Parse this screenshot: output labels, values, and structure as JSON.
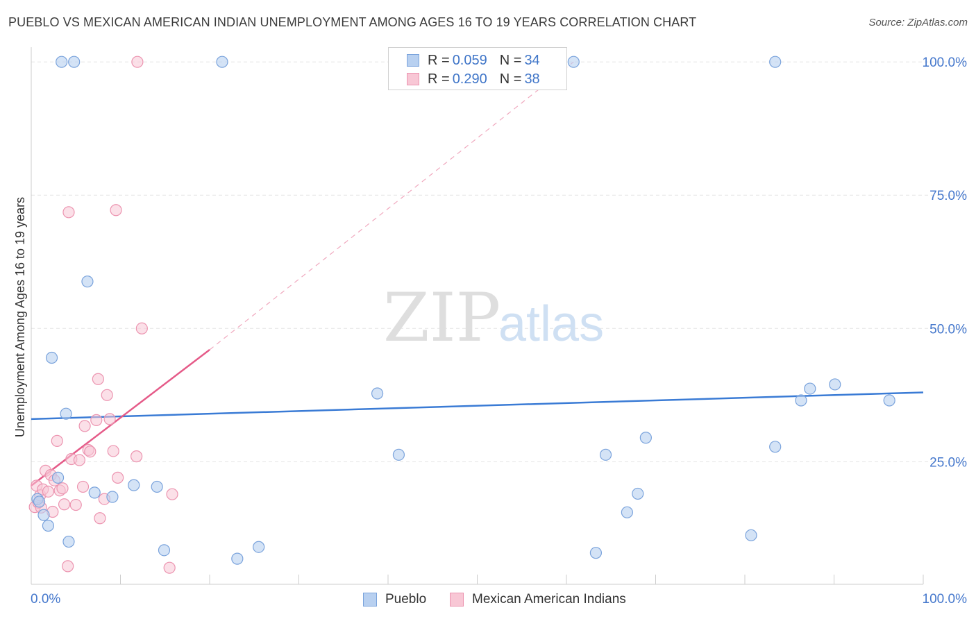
{
  "header": {
    "title": "PUEBLO VS MEXICAN AMERICAN INDIAN UNEMPLOYMENT AMONG AGES 16 TO 19 YEARS CORRELATION CHART",
    "source": "Source: ZipAtlas.com"
  },
  "watermark": {
    "zip": "ZIP",
    "atlas": "atlas"
  },
  "legend": {
    "rows": [
      {
        "r_label": "R =",
        "r_value": "0.059",
        "n_label": "N =",
        "n_value": "34"
      },
      {
        "r_label": "R =",
        "r_value": "0.290",
        "n_label": "N =",
        "n_value": "38"
      }
    ]
  },
  "bottom_legend": {
    "pueblo": "Pueblo",
    "mexican": "Mexican American Indians"
  },
  "chart_data": {
    "type": "scatter",
    "title": "PUEBLO VS MEXICAN AMERICAN INDIAN UNEMPLOYMENT AMONG AGES 16 TO 19 YEARS CORRELATION CHART",
    "xlabel": "",
    "ylabel": "Unemployment Among Ages 16 to 19 years",
    "xlim": [
      0,
      100
    ],
    "ylim": [
      2,
      102.5
    ],
    "x_ticks": [
      "0.0%",
      "100.0%"
    ],
    "y_ticks": [
      {
        "value": 25,
        "label": "25.0%"
      },
      {
        "value": 50,
        "label": "50.0%"
      },
      {
        "value": 75,
        "label": "75.0%"
      },
      {
        "value": 100,
        "label": "100.0%"
      }
    ],
    "colors": {
      "pueblo_fill": "#b8d0f0",
      "pueblo_stroke": "#7aa3dc",
      "pueblo_line": "#3a7bd5",
      "mexican_fill": "#f8c7d5",
      "mexican_stroke": "#ec94b0",
      "mexican_line": "#e55a88"
    },
    "series": [
      {
        "name": "Pueblo",
        "R": 0.059,
        "N": 34,
        "trend": {
          "x0": 0,
          "y0": 33.0,
          "x1": 100,
          "y1": 38.0
        },
        "points": [
          [
            0.7,
            18
          ],
          [
            0.9,
            17.5
          ],
          [
            1.4,
            15
          ],
          [
            1.9,
            13
          ],
          [
            2.3,
            44.5
          ],
          [
            3.0,
            22
          ],
          [
            3.4,
            100
          ],
          [
            3.9,
            34
          ],
          [
            4.2,
            10
          ],
          [
            4.8,
            100
          ],
          [
            6.3,
            58.8
          ],
          [
            7.1,
            19.2
          ],
          [
            9.1,
            18.4
          ],
          [
            11.5,
            20.6
          ],
          [
            14.1,
            20.3
          ],
          [
            14.9,
            8.4
          ],
          [
            21.4,
            100
          ],
          [
            23.1,
            6.8
          ],
          [
            25.5,
            9
          ],
          [
            38.8,
            37.8
          ],
          [
            41.2,
            26.3
          ],
          [
            60.8,
            100
          ],
          [
            63.3,
            7.9
          ],
          [
            64.4,
            26.3
          ],
          [
            66.8,
            15.5
          ],
          [
            68.0,
            19.0
          ],
          [
            68.9,
            29.5
          ],
          [
            80.7,
            11.2
          ],
          [
            83.4,
            100
          ],
          [
            83.4,
            27.8
          ],
          [
            86.3,
            36.5
          ],
          [
            87.3,
            38.7
          ],
          [
            90.1,
            39.5
          ],
          [
            96.2,
            36.5
          ]
        ]
      },
      {
        "name": "Mexican American Indians",
        "R": 0.29,
        "N": 38,
        "trend": {
          "x0": 0,
          "y0": 20.5,
          "x1": 20,
          "y1": 46.0
        },
        "trend_extension": {
          "x0": 20,
          "y0": 46.0,
          "x1": 60.8,
          "y1": 100
        },
        "points": [
          [
            0.4,
            16.5
          ],
          [
            0.6,
            20.5
          ],
          [
            0.8,
            17.3
          ],
          [
            1.0,
            18.7
          ],
          [
            1.3,
            19.8
          ],
          [
            1.6,
            23.3
          ],
          [
            1.9,
            19.4
          ],
          [
            2.2,
            22.5
          ],
          [
            2.6,
            21.5
          ],
          [
            2.9,
            28.9
          ],
          [
            3.2,
            19.6
          ],
          [
            3.5,
            20
          ],
          [
            3.7,
            17
          ],
          [
            4.2,
            71.8
          ],
          [
            4.5,
            25.5
          ],
          [
            5.0,
            16.9
          ],
          [
            5.4,
            25.3
          ],
          [
            5.8,
            20.3
          ],
          [
            6.0,
            31.7
          ],
          [
            6.4,
            27.2
          ],
          [
            6.6,
            26.9
          ],
          [
            7.3,
            32.8
          ],
          [
            7.5,
            40.5
          ],
          [
            7.7,
            14.4
          ],
          [
            8.2,
            18
          ],
          [
            8.5,
            37.5
          ],
          [
            8.8,
            33
          ],
          [
            9.2,
            27
          ],
          [
            9.5,
            72.2
          ],
          [
            9.7,
            22
          ],
          [
            11.8,
            26
          ],
          [
            11.9,
            100
          ],
          [
            12.4,
            50
          ],
          [
            15.5,
            5.1
          ],
          [
            15.8,
            18.9
          ],
          [
            4.1,
            5.4
          ],
          [
            2.4,
            15.6
          ],
          [
            1.1,
            16.4
          ]
        ]
      }
    ]
  }
}
